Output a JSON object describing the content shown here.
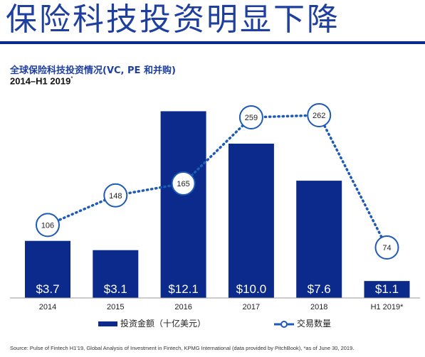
{
  "header": {
    "title": "保险科技投资明显下降",
    "subtitle": "全球保险科技投资情况(VC, PE 和并购)",
    "period": "2014–H1 2019",
    "period_mark": "*"
  },
  "chart_data": {
    "type": "bar",
    "categories": [
      "2014",
      "2015",
      "2016",
      "2017",
      "2018",
      "H1 2019*"
    ],
    "series": [
      {
        "name": "投资金额（十亿美元）",
        "type": "bar",
        "values": [
          3.7,
          3.1,
          12.1,
          10.0,
          7.6,
          1.1
        ],
        "labels": [
          "$3.7",
          "$3.1",
          "$12.1",
          "$10.0",
          "$7.6",
          "$1.1"
        ],
        "color": "#0b2a8c"
      },
      {
        "name": "交易数量",
        "type": "line",
        "values": [
          106,
          148,
          165,
          259,
          262,
          74
        ],
        "labels": [
          "106",
          "148",
          "165",
          "259",
          "262",
          "74"
        ],
        "color": "#1e5bb8"
      }
    ],
    "legend_position": "bottom",
    "grid": false
  },
  "footer": {
    "source": "Source: Pulse of Fintech H1'19, Global Analysis of Investment in Fintech, KPMG International (data provided by PitchBook), *as of June 30, 2019."
  }
}
